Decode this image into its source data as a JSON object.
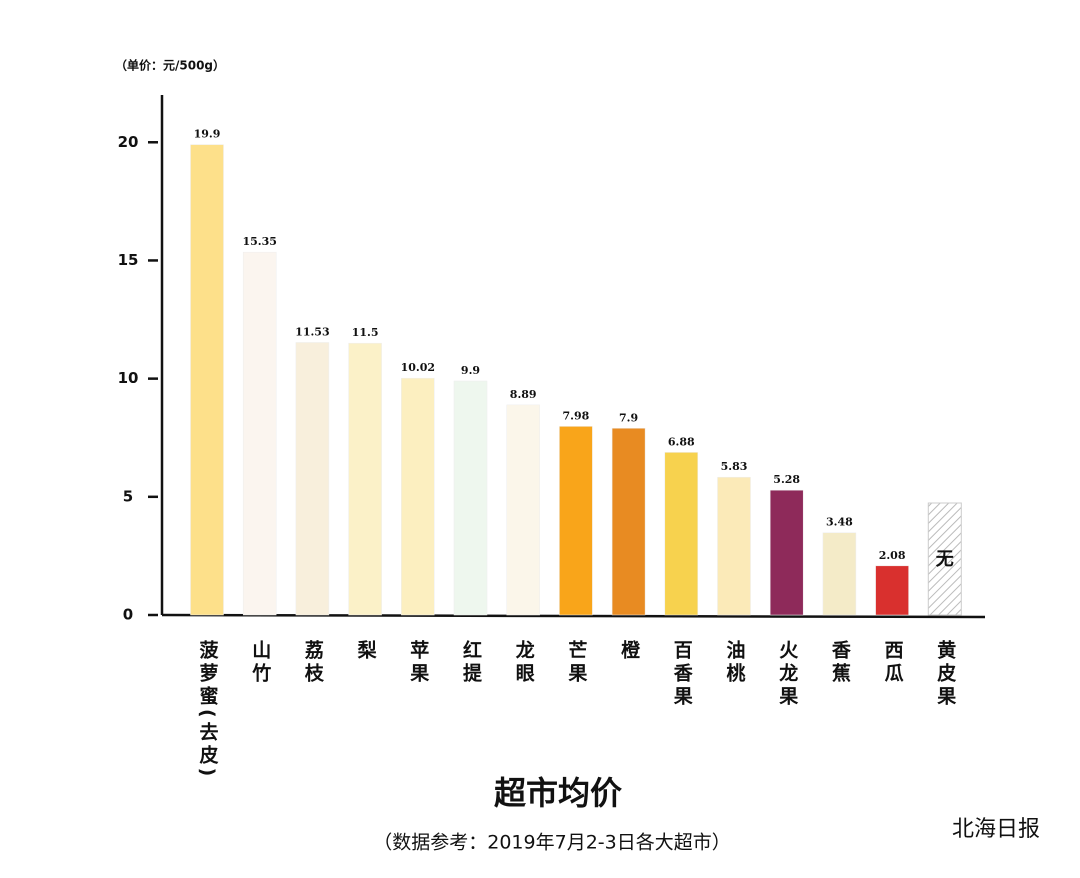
{
  "chart_data": {
    "type": "bar",
    "title": "超市均价",
    "subtitle": "（数据参考：2019年7月2-3日各大超市）",
    "y_label": "（单价：元/500g）",
    "source": "北海日报",
    "missing_label": "无",
    "categories": [
      "菠萝蜜(去皮)",
      "山竹",
      "荔枝",
      "梨",
      "苹果",
      "红提",
      "龙眼",
      "芒果",
      "橙",
      "百香果",
      "油桃",
      "火龙果",
      "香蕉",
      "西瓜",
      "黄皮果"
    ],
    "values": [
      19.9,
      15.35,
      11.53,
      11.5,
      10.02,
      9.9,
      8.89,
      7.98,
      7.9,
      6.88,
      5.83,
      5.28,
      3.48,
      2.08,
      null
    ],
    "colors": [
      "#fde08a",
      "#fbf5ef",
      "#f8efdc",
      "#fbf1c8",
      "#fcefc0",
      "#eef7ee",
      "#fbf6ea",
      "#f9a51a",
      "#e88b22",
      "#f7d24e",
      "#fbeab8",
      "#8e2a5a",
      "#f4ebc8",
      "#d9302e",
      "#ffffff"
    ],
    "ylim": [
      0,
      22
    ],
    "yticks": [
      0,
      5,
      10,
      15,
      20
    ],
    "grid": false
  }
}
